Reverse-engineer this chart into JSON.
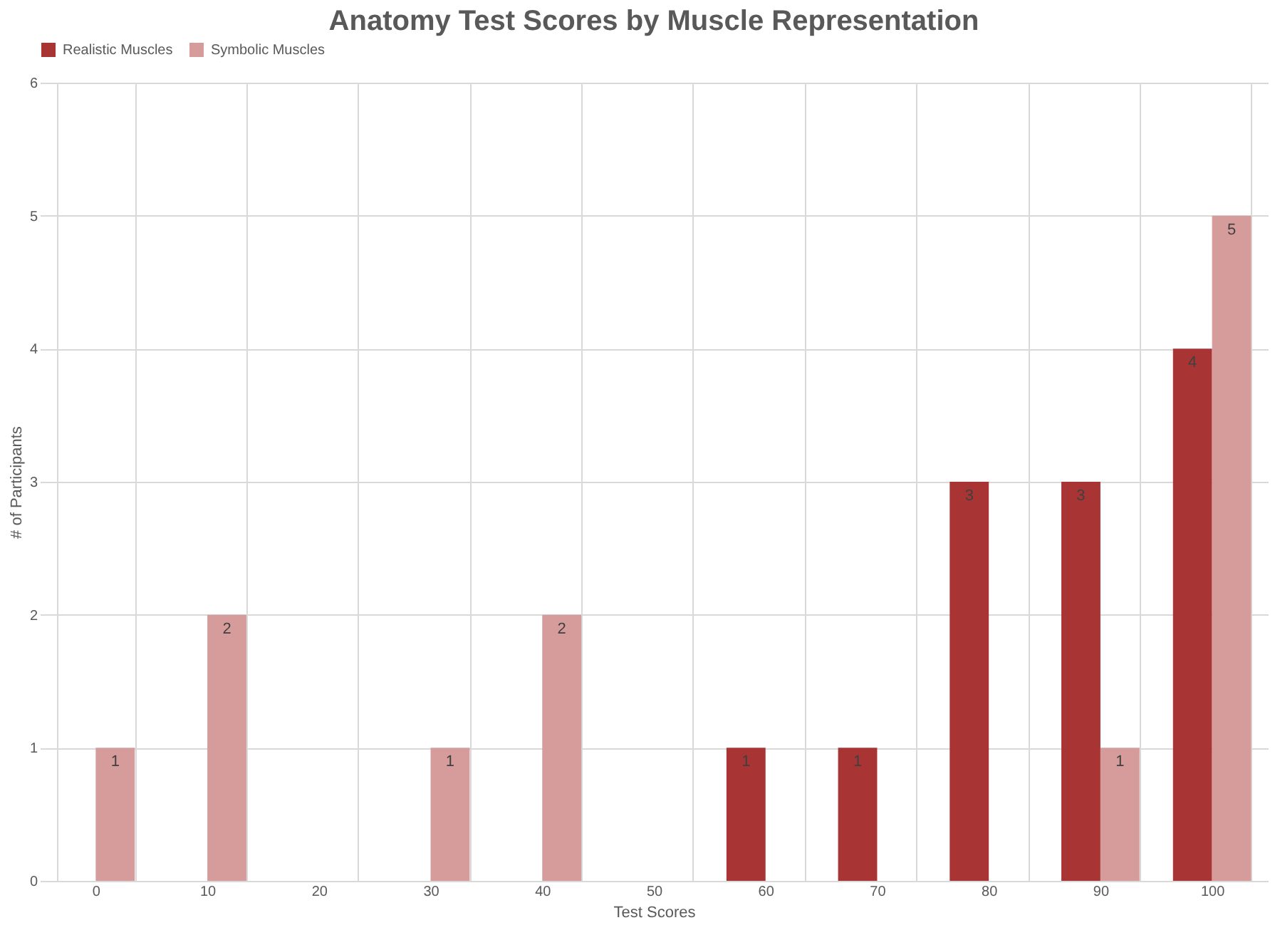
{
  "chart_data": {
    "type": "bar",
    "title": "Anatomy Test Scores by Muscle Representation",
    "xlabel": "Test Scores",
    "ylabel": "# of Participants",
    "categories": [
      "0",
      "10",
      "20",
      "30",
      "40",
      "50",
      "60",
      "70",
      "80",
      "90",
      "100"
    ],
    "series": [
      {
        "name": "Realistic Muscles",
        "color": "#a83434",
        "values": [
          0,
          0,
          0,
          0,
          0,
          0,
          1,
          1,
          3,
          3,
          4
        ],
        "value_labels": [
          null,
          null,
          null,
          null,
          null,
          null,
          "1",
          "1",
          "3",
          "3",
          "4"
        ]
      },
      {
        "name": "Symbolic Muscles",
        "color": "#d69c9c",
        "values": [
          1,
          2,
          0,
          1,
          2,
          0,
          0,
          0,
          0,
          1,
          5
        ],
        "value_labels": [
          "1",
          "2",
          null,
          "1",
          "2",
          null,
          null,
          null,
          null,
          "1",
          "5"
        ]
      }
    ],
    "ylim": [
      0,
      6
    ],
    "yticks": [
      0,
      1,
      2,
      3,
      4,
      5,
      6
    ],
    "grid": true,
    "legend": "top"
  }
}
